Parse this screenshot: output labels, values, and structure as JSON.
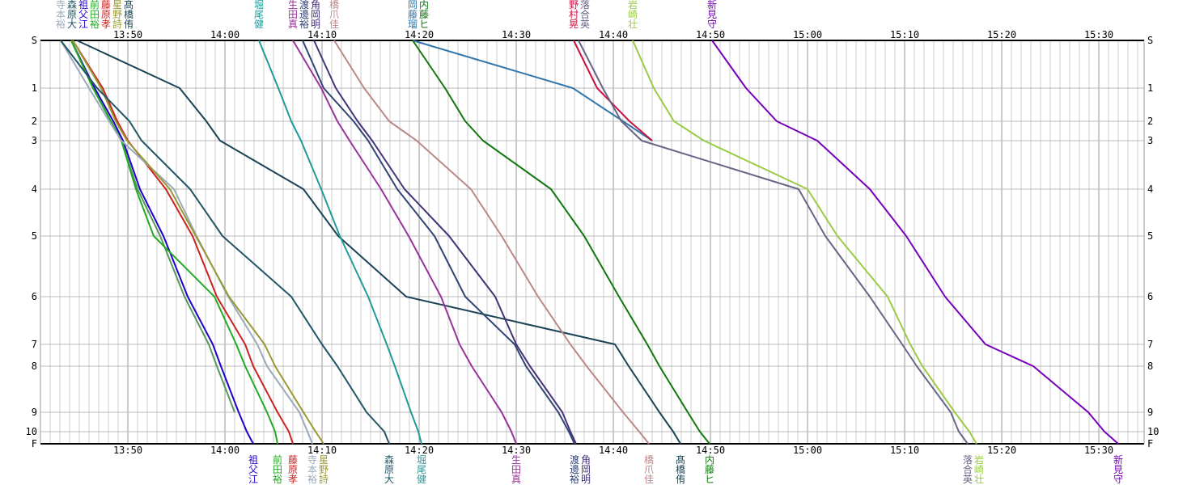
{
  "chart_data": {
    "type": "line",
    "title": "",
    "xlabel": "",
    "ylabel": "",
    "xlim": [
      "13:41:00",
      "15:34:40"
    ],
    "x_ticks": [
      "13:50",
      "14:00",
      "14:10",
      "14:20",
      "14:30",
      "14:40",
      "14:50",
      "15:00",
      "15:10",
      "15:20",
      "15:30"
    ],
    "y_categories": [
      "S",
      "1",
      "2",
      "3",
      "4",
      "5",
      "6",
      "7",
      "8",
      "9",
      "10",
      "F"
    ],
    "grid": true,
    "series": [
      {
        "name": "祖父江",
        "color": "#2200cc",
        "times": [
          "13:44:10",
          "13:46:35",
          "13:48:30",
          "13:49:30",
          "13:51:15",
          "13:53:40",
          "13:56:10",
          "13:58:45",
          "13:59:35",
          "14:01:25",
          "14:02:15",
          "14:02:55"
        ]
      },
      {
        "name": "",
        "color": "#55995a",
        "times": [
          "13:44:10",
          "13:46:25",
          "13:48:15",
          "13:49:20",
          "13:51:00",
          "13:53:20",
          "13:55:50",
          "13:58:20",
          "13:59:10",
          "14:01:00"
        ]
      },
      {
        "name": "前田裕",
        "color": "#22aa22",
        "times": [
          "13:44:10",
          "13:46:25",
          "13:48:15",
          "13:49:20",
          "13:50:50",
          "13:52:40",
          "13:58:55",
          "14:01:10",
          "14:02:05",
          "14:04:20",
          "14:05:10",
          "14:05:25"
        ]
      },
      {
        "name": "藤原孝",
        "color": "#cc2222",
        "times": [
          "13:44:20",
          "13:47:25",
          "13:48:55",
          "13:50:00",
          "13:53:55",
          "13:56:40",
          "13:59:10",
          "14:02:05",
          "14:02:55",
          "14:05:25",
          "14:06:35",
          "14:07:00"
        ]
      },
      {
        "name": "寺本裕",
        "color": "#99aabb",
        "times": [
          "13:43:05",
          "13:46:00",
          "13:48:05",
          "13:49:20",
          "13:54:45",
          "13:57:05",
          "14:00:20",
          "14:03:20",
          "14:04:20",
          "14:07:40",
          "14:08:30",
          "14:09:00"
        ]
      },
      {
        "name": "星野詩",
        "color": "#999933",
        "times": [
          "13:44:20",
          "13:47:15",
          "13:48:45",
          "13:49:55",
          "13:54:20",
          "13:57:00",
          "14:00:25",
          "14:04:05",
          "14:05:10",
          "14:08:05",
          "14:09:20",
          "14:10:10"
        ]
      },
      {
        "name": "森原大",
        "color": "#225566",
        "times": [
          "13:43:05",
          "13:46:50",
          "13:50:10",
          "13:51:25",
          "13:56:25",
          "13:59:45",
          "14:06:50",
          "14:10:00",
          "14:11:35",
          "14:14:35",
          "14:16:25",
          "14:16:55"
        ]
      },
      {
        "name": "髙橋侑",
        "color": "#1a4455",
        "times": [
          "13:44:45",
          "13:55:20",
          "13:58:05",
          "13:59:30",
          "14:08:05",
          "14:11:40",
          "14:18:40",
          "14:40:10",
          "14:41:35",
          "14:44:45",
          "14:46:10",
          "14:46:55"
        ]
      },
      {
        "name": "堀尾健",
        "color": "#229999",
        "times": [
          "14:03:30",
          "14:05:30",
          "14:06:50",
          "14:07:50",
          "14:09:55",
          "14:11:50",
          "14:14:45",
          "14:16:40",
          "14:17:30",
          "14:19:10",
          "14:19:55",
          "14:20:15"
        ]
      },
      {
        "name": "生田真",
        "color": "#993399",
        "times": [
          "14:07:00",
          "14:09:55",
          "14:11:35",
          "14:12:50",
          "14:16:05",
          "14:18:55",
          "14:22:15",
          "14:24:10",
          "14:25:25",
          "14:28:30",
          "14:29:30",
          "14:30:00"
        ]
      },
      {
        "name": "渡邊裕",
        "color": "#334477",
        "times": [
          "14:08:00",
          "14:10:10",
          "14:13:15",
          "14:14:45",
          "14:17:45",
          "14:21:35",
          "14:24:45",
          "14:29:50",
          "14:31:00",
          "14:34:20",
          "14:35:25",
          "14:36:00"
        ]
      },
      {
        "name": "角岡明",
        "color": "#443377",
        "times": [
          "14:09:10",
          "14:11:25",
          "14:13:40",
          "14:15:10",
          "14:18:30",
          "14:23:05",
          "14:27:50",
          "14:30:00",
          "14:31:25",
          "14:34:45",
          "14:35:35",
          "14:36:10"
        ]
      },
      {
        "name": "橋爪佳",
        "color": "#bb8888",
        "times": [
          "14:11:15",
          "14:14:20",
          "14:16:55",
          "14:19:45",
          "14:25:20",
          "14:28:30",
          "14:32:15",
          "14:35:35",
          "14:37:15",
          "14:41:00",
          "14:42:40",
          "14:43:40"
        ]
      },
      {
        "name": "岡藤瑠",
        "color": "#3377aa",
        "times": [
          "14:19:20",
          "14:35:50",
          "14:41:00",
          "14:44:00"
        ]
      },
      {
        "name": "内藤ヒ",
        "color": "#117711",
        "times": [
          "14:19:20",
          "14:22:40",
          "14:24:45",
          "14:26:35",
          "14:33:35",
          "14:37:00",
          "14:40:35",
          "14:43:30",
          "14:44:45",
          "14:47:40",
          "14:48:55",
          "14:49:55"
        ]
      },
      {
        "name": "野村晃",
        "color": "#cc1144",
        "times": [
          "14:35:55",
          "14:38:20",
          "14:41:40",
          "14:44:00"
        ]
      },
      {
        "name": "落合英",
        "color": "#666688",
        "times": [
          "14:36:25",
          "14:38:55",
          "14:40:50",
          "14:42:55",
          "14:59:05",
          "15:01:50",
          "15:06:25",
          "15:09:45",
          "15:11:15",
          "15:14:45",
          "15:15:35",
          "15:16:30"
        ]
      },
      {
        "name": "岩崎壮",
        "color": "#99cc44",
        "times": [
          "14:42:00",
          "14:44:10",
          "14:46:15",
          "14:49:20",
          "15:00:00",
          "15:03:05",
          "15:08:15",
          "15:10:35",
          "15:11:50",
          "15:15:10",
          "15:16:40",
          "15:17:25"
        ]
      },
      {
        "name": "新見守",
        "color": "#7700bb",
        "times": [
          "14:50:10",
          "14:53:40",
          "14:56:50",
          "15:01:00",
          "15:06:25",
          "15:10:10",
          "15:14:10",
          "15:18:20",
          "15:23:15",
          "15:28:55",
          "15:30:35",
          "15:32:00"
        ]
      }
    ]
  }
}
